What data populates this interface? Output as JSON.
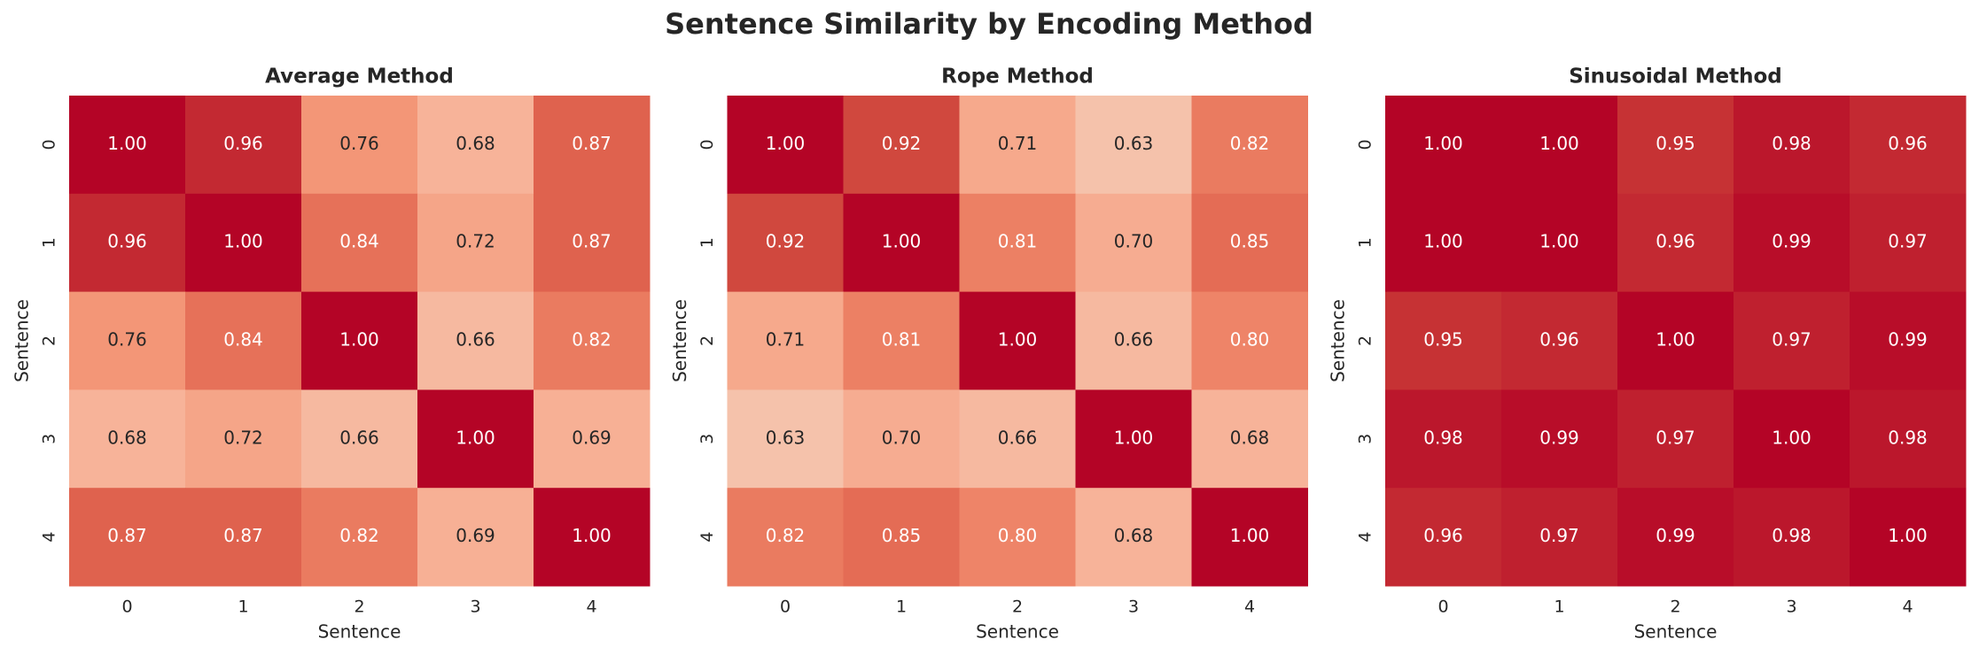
{
  "title": "Sentence Similarity by Encoding Method",
  "chart_data": [
    {
      "type": "heatmap",
      "title": "Average Method",
      "x_label": "Sentence",
      "y_label": "Sentence",
      "x": [
        "0",
        "1",
        "2",
        "3",
        "4"
      ],
      "y": [
        "0",
        "1",
        "2",
        "3",
        "4"
      ],
      "cmap": "coolwarm",
      "vlim": [
        0,
        1
      ],
      "values": [
        [
          1,
          0.96,
          0.76,
          0.68,
          0.87
        ],
        [
          0.96,
          1,
          0.84,
          0.72,
          0.87
        ],
        [
          0.76,
          0.84,
          1,
          0.66,
          0.82
        ],
        [
          0.68,
          0.72,
          0.66,
          1,
          0.69
        ],
        [
          0.87,
          0.87,
          0.82,
          0.69,
          1
        ]
      ],
      "value_labels": [
        [
          "1.00",
          "0.96",
          "0.76",
          "0.68",
          "0.87"
        ],
        [
          "0.96",
          "1.00",
          "0.84",
          "0.72",
          "0.87"
        ],
        [
          "0.76",
          "0.84",
          "1.00",
          "0.66",
          "0.82"
        ],
        [
          "0.68",
          "0.72",
          "0.66",
          "1.00",
          "0.69"
        ],
        [
          "0.87",
          "0.87",
          "0.82",
          "0.69",
          "1.00"
        ]
      ]
    },
    {
      "type": "heatmap",
      "title": "Rope Method",
      "x_label": "Sentence",
      "y_label": "Sentence",
      "x": [
        "0",
        "1",
        "2",
        "3",
        "4"
      ],
      "y": [
        "0",
        "1",
        "2",
        "3",
        "4"
      ],
      "cmap": "coolwarm",
      "vlim": [
        0,
        1
      ],
      "values": [
        [
          1,
          0.92,
          0.71,
          0.63,
          0.82
        ],
        [
          0.92,
          1,
          0.81,
          0.7,
          0.85
        ],
        [
          0.71,
          0.81,
          1,
          0.66,
          0.8
        ],
        [
          0.63,
          0.7,
          0.66,
          1,
          0.68
        ],
        [
          0.82,
          0.85,
          0.8,
          0.68,
          1
        ]
      ],
      "value_labels": [
        [
          "1.00",
          "0.92",
          "0.71",
          "0.63",
          "0.82"
        ],
        [
          "0.92",
          "1.00",
          "0.81",
          "0.70",
          "0.85"
        ],
        [
          "0.71",
          "0.81",
          "1.00",
          "0.66",
          "0.80"
        ],
        [
          "0.63",
          "0.70",
          "0.66",
          "1.00",
          "0.68"
        ],
        [
          "0.82",
          "0.85",
          "0.80",
          "0.68",
          "1.00"
        ]
      ]
    },
    {
      "type": "heatmap",
      "title": "Sinusoidal Method",
      "x_label": "Sentence",
      "y_label": "Sentence",
      "x": [
        "0",
        "1",
        "2",
        "3",
        "4"
      ],
      "y": [
        "0",
        "1",
        "2",
        "3",
        "4"
      ],
      "cmap": "coolwarm",
      "vlim": [
        0,
        1
      ],
      "values": [
        [
          1,
          1,
          0.95,
          0.98,
          0.96
        ],
        [
          1,
          1,
          0.96,
          0.99,
          0.97
        ],
        [
          0.95,
          0.96,
          1,
          0.97,
          0.99
        ],
        [
          0.98,
          0.99,
          0.97,
          1,
          0.98
        ],
        [
          0.96,
          0.97,
          0.99,
          0.98,
          1
        ]
      ],
      "value_labels": [
        [
          "1.00",
          "1.00",
          "0.95",
          "0.98",
          "0.96"
        ],
        [
          "1.00",
          "1.00",
          "0.96",
          "0.99",
          "0.97"
        ],
        [
          "0.95",
          "0.96",
          "1.00",
          "0.97",
          "0.99"
        ],
        [
          "0.98",
          "0.99",
          "0.97",
          "1.00",
          "0.98"
        ],
        [
          "0.96",
          "0.97",
          "0.99",
          "0.98",
          "1.00"
        ]
      ]
    }
  ]
}
